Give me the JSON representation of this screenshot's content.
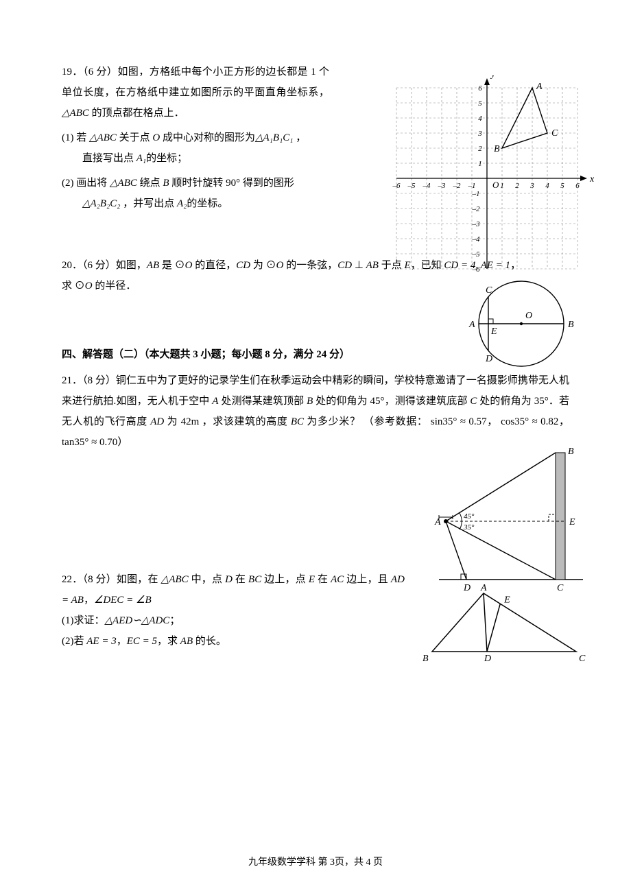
{
  "p19": {
    "num": "19．",
    "points": "（6 分）",
    "intro": "如图，方格纸中每个小正方形的边长都是 1 个单位长度，在方格纸中建立如图所示的平面直角坐标系，",
    "tri": "△ABC",
    "intro2": " 的顶点都在格点上．",
    "q1a": "(1) 若 ",
    "q1b": " 关于点 ",
    "q1c": " 成中心对称的图形为",
    "q1tri": "△A₁B₁C₁",
    "q1d": " ，",
    "q1e": "直接写出点 ",
    "q1f": "的坐标；",
    "pointO": "O",
    "pointA1": "A₁",
    "q2a": "(2) 画出将 ",
    "q2b": " 绕点 ",
    "q2c": " 顺时针旋转 ",
    "q2deg": "90°",
    "q2d": " 得到的图形",
    "q2tri": "△A₂B₂C₂",
    "q2e": " ，并写出点 ",
    "q2f": "的坐标。",
    "pointB": "B",
    "pointA2": "A₂",
    "grid": {
      "xmin": -6,
      "xmax": 6,
      "ymin": -6,
      "ymax": 6,
      "axis_color": "#000000",
      "grid_color": "#888888",
      "A": [
        3,
        6
      ],
      "Bv": [
        1,
        2
      ],
      "C": [
        4,
        3
      ],
      "labels": {
        "A": "A",
        "B": "B",
        "C": "C",
        "O": "O",
        "x": "x",
        "y": "y"
      }
    }
  },
  "p20": {
    "num": "20．",
    "points": "（6 分）",
    "t1": "如图，",
    "AB": "AB",
    "t2": " 是 ⊙",
    "O": "O",
    "t3": " 的直径，",
    "CD": "CD",
    "t4": " 为 ⊙",
    "t5": " 的一条弦，",
    "t6": " ⊥ ",
    "t7": " 于点 ",
    "E": "E",
    "t8": "，已知 ",
    "eq1": "CD = 4, AE = 1",
    "t9": "，",
    "t10": "求 ⊙",
    "t11": " 的半径．",
    "fig": {
      "labels": {
        "A": "A",
        "B": "B",
        "C": "C",
        "D": "D",
        "E": "E",
        "O": "O"
      }
    }
  },
  "section4": "四、解答题（二）（本大题共 3 小题；每小题 8 分，满分 24 分）",
  "p21": {
    "num": "21．",
    "points": "（8 分）",
    "t1": "铜仁五中为了更好的记录学生们在秋季运动会中精彩的瞬间，学校特意邀请了一名摄影师携带无人机来进行航拍.如图，无人机于空中 ",
    "A": "A",
    "t2": " 处测得某建筑顶部 ",
    "B": "B",
    "t3": " 处的仰角为 ",
    "a45": "45°",
    "t4": "，测得该建筑底部 ",
    "C": "C",
    "t5": " 处的俯角为 ",
    "a35": "35°",
    "t6": "．若无人机的飞行高度 ",
    "AD": "AD",
    "t7": " 为 ",
    "h": "42m",
    "t8": " ，求该建筑的高度 ",
    "BC": "BC",
    "t9": " 为多少米？",
    "ref": "（参考数据：",
    "r1": "sin35° ≈ 0.57",
    "r2": "，",
    "r3": "cos35° ≈ 0.82",
    "r4": "，",
    "r5": "tan35° ≈ 0.70",
    "r6": "）",
    "fig": {
      "labels": {
        "A": "A",
        "B": "B",
        "C": "C",
        "D": "D",
        "E": "E",
        "a45": "45°",
        "a35": "35°"
      }
    }
  },
  "p22": {
    "num": "22．",
    "points": "（8 分）",
    "t1": "如图，在 ",
    "tri": "△ABC",
    "t2": " 中，点 ",
    "D": "D",
    "t3": " 在 ",
    "BC_seg": "BC",
    "t4": " 边上，点 ",
    "E": "E",
    "t5": " 在 ",
    "AC_seg": "AC",
    "t6": " 边上，且 ",
    "eq1": "AD = AB",
    "t7": "，",
    "eq2": "∠DEC = ∠B",
    "q1a": "(1)求证：",
    "sim": "△AED∽△ADC",
    "q1b": "；",
    "q2a": "(2)若 ",
    "AE": "AE = 3",
    "q2b": "，",
    "EC": "EC = 5",
    "q2c": "，求 ",
    "AB": "AB",
    "q2d": " 的长。",
    "fig": {
      "labels": {
        "A": "A",
        "B": "B",
        "C": "C",
        "D": "D",
        "E": "E"
      }
    }
  },
  "footer": {
    "text": "九年级数学学科  第 3页，共 4 页"
  }
}
